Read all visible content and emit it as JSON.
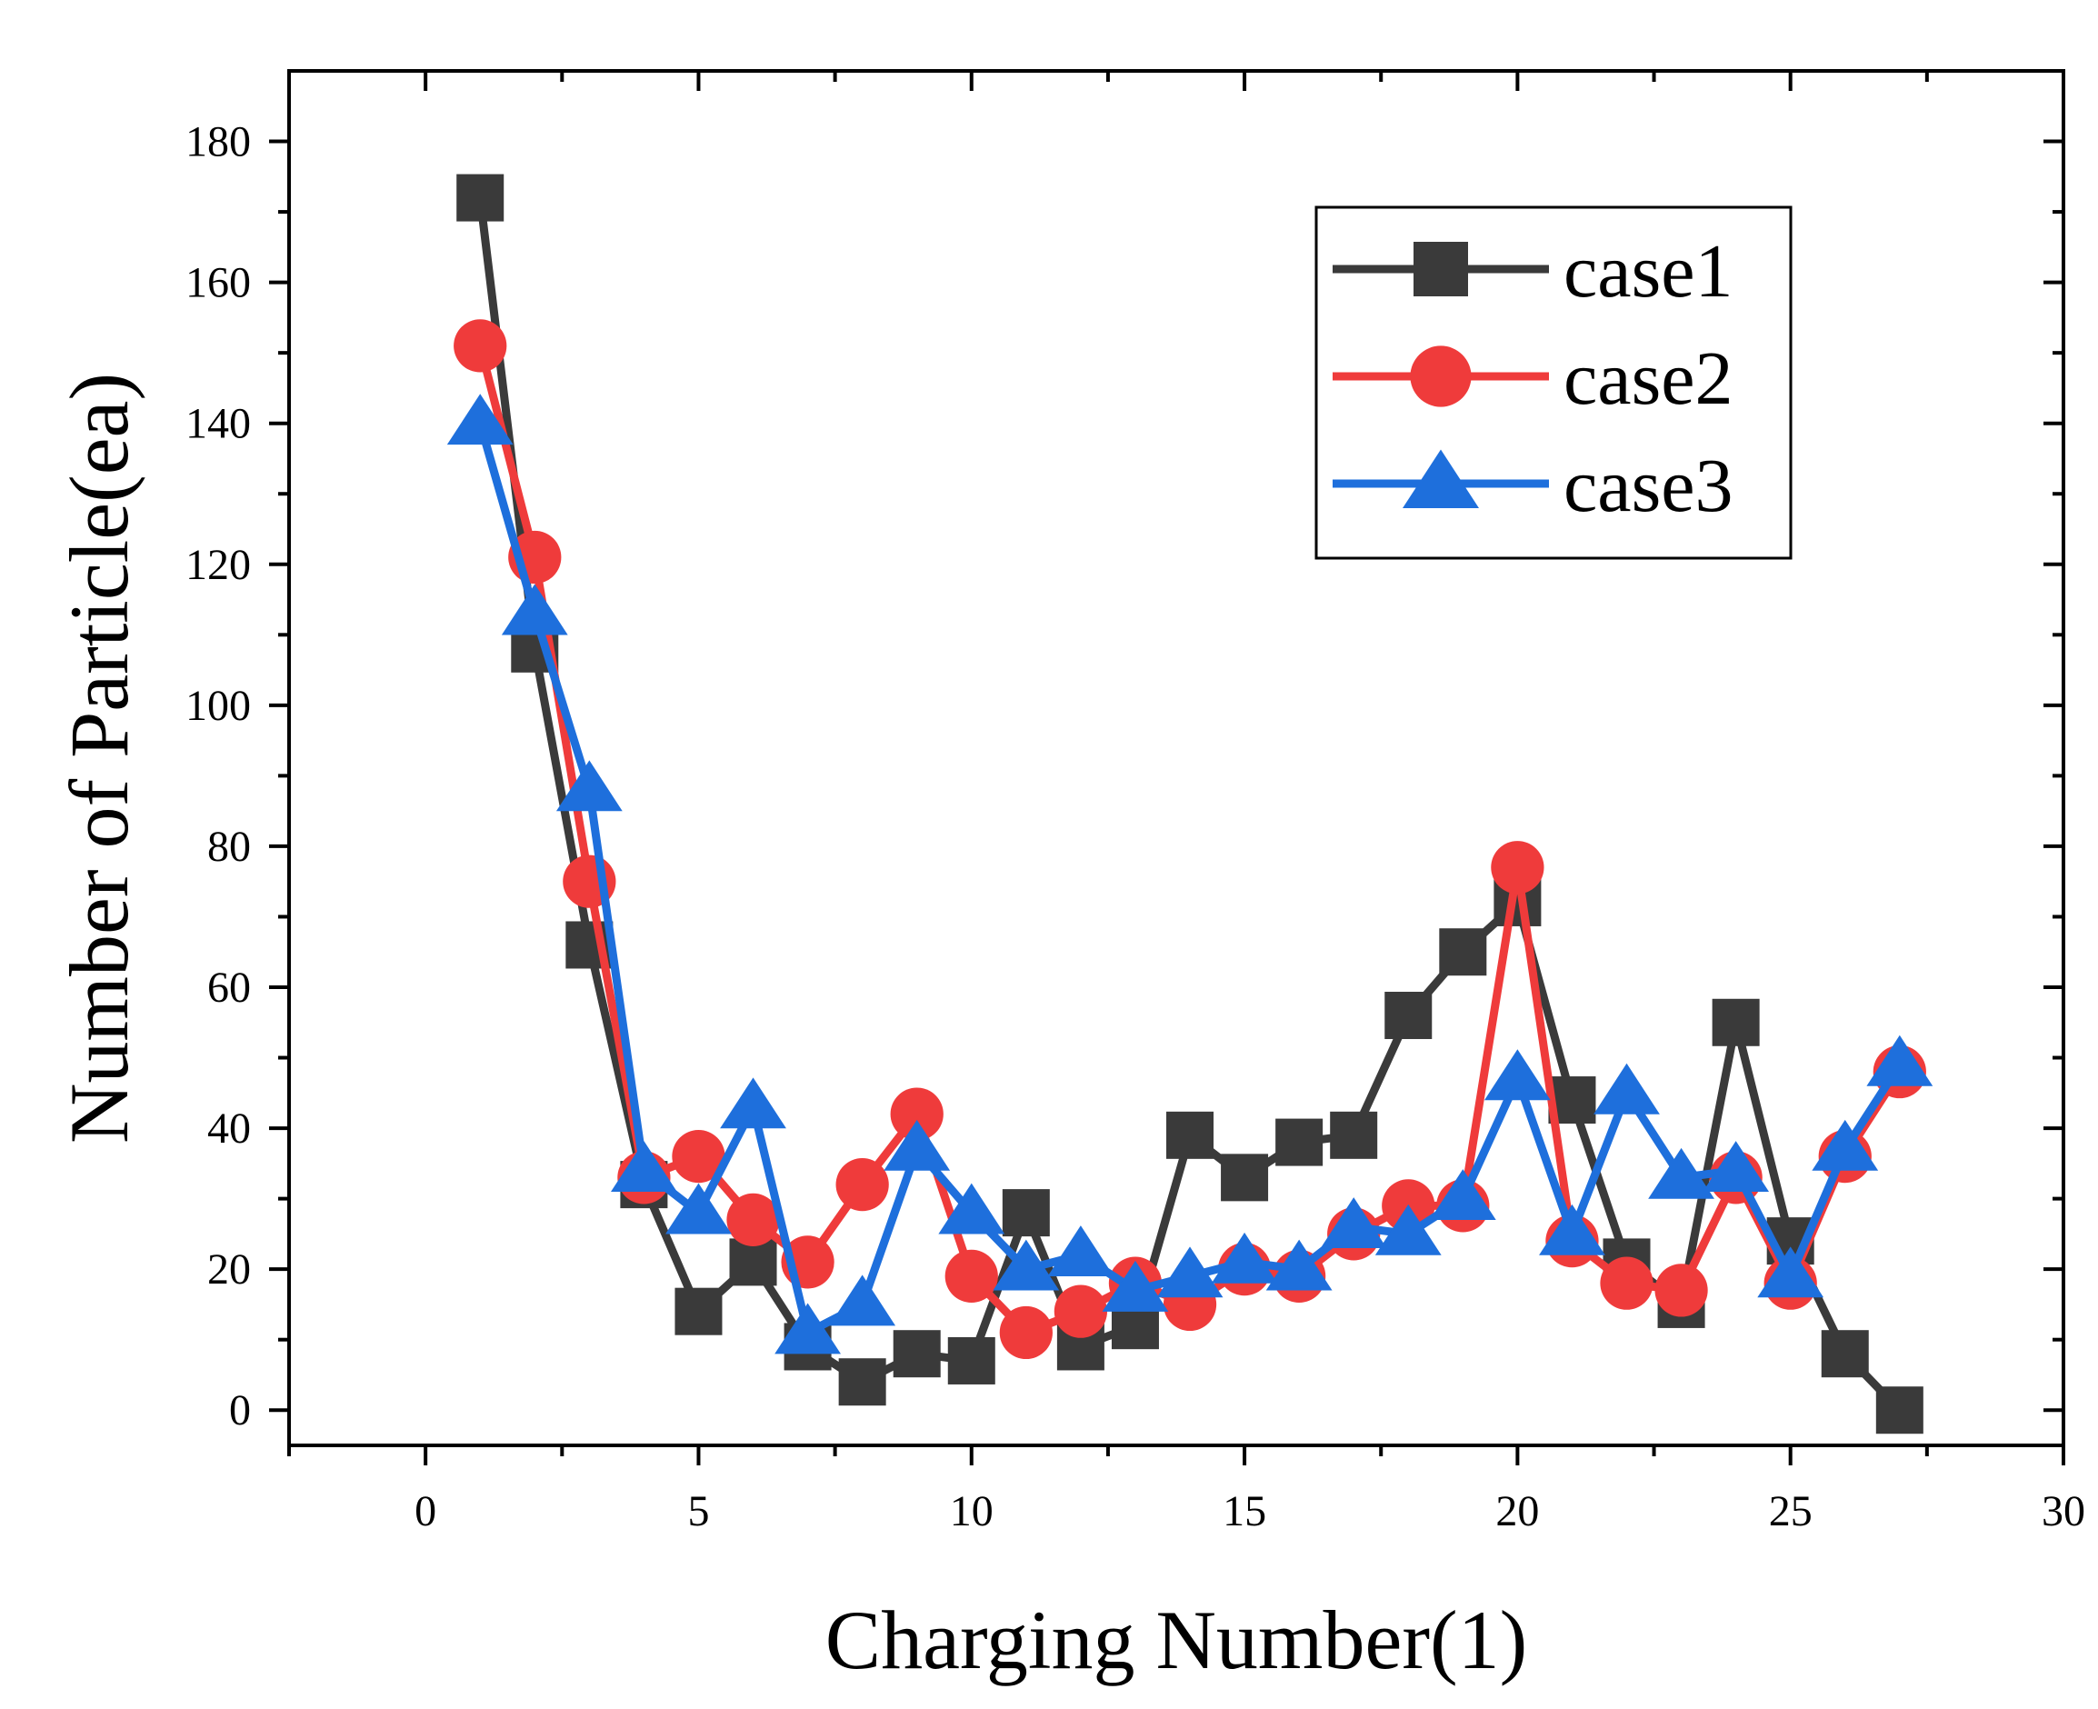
{
  "chart_data": {
    "type": "line",
    "title": "",
    "xlabel": "Charging Number(1)",
    "ylabel": "Number of Particle(ea)",
    "xlim": [
      -2.5,
      30
    ],
    "ylim": [
      -5,
      190
    ],
    "xticks": [
      0,
      5,
      10,
      15,
      20,
      25,
      30
    ],
    "yticks": [
      0,
      20,
      40,
      60,
      80,
      100,
      120,
      140,
      160,
      180
    ],
    "grid": false,
    "legend_position": "top-right",
    "x": [
      1,
      2,
      3,
      4,
      5,
      6,
      7,
      8,
      9,
      10,
      11,
      12,
      13,
      14,
      15,
      16,
      17,
      18,
      19,
      20,
      21,
      22,
      23,
      24,
      25,
      26,
      27
    ],
    "series": [
      {
        "name": "case1",
        "color": "#3a3a3a",
        "marker": "square",
        "values": [
          172,
          108,
          66,
          32,
          14,
          21,
          9,
          4,
          8,
          7,
          28,
          9,
          12,
          39,
          33,
          38,
          39,
          56,
          65,
          72,
          44,
          21,
          15,
          55,
          24,
          8,
          0
        ]
      },
      {
        "name": "case2",
        "color": "#ef3b3b",
        "marker": "circle",
        "values": [
          151,
          121,
          75,
          33,
          36,
          27,
          21,
          32,
          42,
          19,
          11,
          14,
          18,
          15,
          20,
          19,
          25,
          29,
          29,
          77,
          24,
          18,
          17,
          33,
          18,
          36,
          48
        ]
      },
      {
        "name": "case3",
        "color": "#1e6fdc",
        "marker": "triangle",
        "values": [
          140,
          113,
          88,
          34,
          28,
          43,
          11,
          15,
          37,
          28,
          20,
          22,
          17,
          19,
          21,
          20,
          26,
          25,
          30,
          47,
          25,
          45,
          33,
          34,
          19,
          37,
          49
        ]
      }
    ]
  }
}
